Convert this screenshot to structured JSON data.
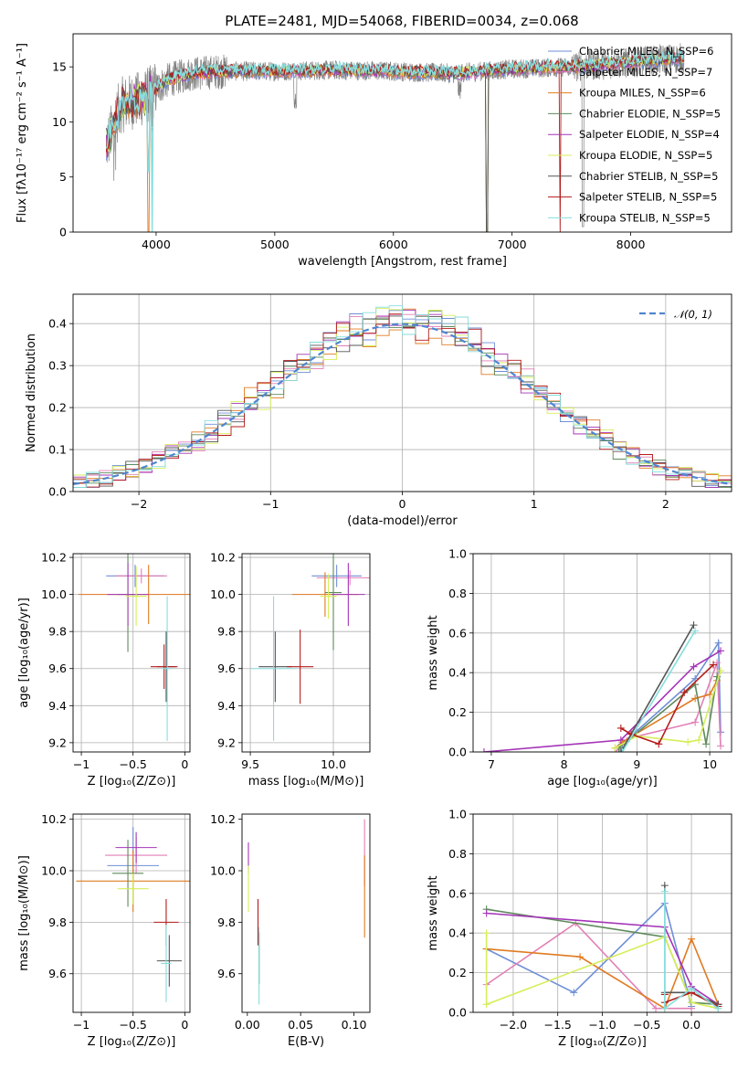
{
  "colors": {
    "chabrier_miles": "#6f8fd6",
    "salpeter_miles": "#e27fb6",
    "kroupa_miles": "#e07b22",
    "chabrier_elodie": "#5e8a5a",
    "salpeter_elodie": "#a534b8",
    "kroupa_elodie": "#d6ee5a",
    "chabrier_stelib": "#555555",
    "salpeter_stelib": "#b51c1c",
    "kroupa_stelib": "#86dede",
    "data": "#808080",
    "gauss": "#4f86d0"
  },
  "chart_data": [
    {
      "id": "spectrum",
      "type": "line",
      "title": "PLATE=2481, MJD=54068, FIBERID=0034, z=0.068",
      "xlabel": "wavelength [Angstrom, rest frame]",
      "ylabel": "Flux [fλ10⁻¹⁷ erg cm⁻² s⁻¹ A⁻¹]",
      "xlim": [
        3300,
        8850
      ],
      "ylim": [
        0,
        18
      ],
      "xticks": [
        4000,
        5000,
        6000,
        7000,
        8000
      ],
      "yticks": [
        0,
        5,
        10,
        15
      ],
      "grid": false,
      "legend_position": "right",
      "legend": [
        "Chabrier MILES, N_SSP=6",
        "Salpeter MILES, N_SSP=7",
        "Kroupa MILES, N_SSP=6",
        "Chabrier ELODIE, N_SSP=5",
        "Salpeter ELODIE, N_SSP=4",
        "Kroupa ELODIE, N_SSP=5",
        "Chabrier STELIB, N_SSP=5",
        "Salpeter STELIB, N_SSP=5",
        "Kroupa STELIB, N_SSP=5"
      ],
      "continuum": [
        [
          3580,
          7.8
        ],
        [
          3700,
          11.5
        ],
        [
          3900,
          12.2
        ],
        [
          4100,
          13.8
        ],
        [
          4300,
          14.4
        ],
        [
          4600,
          14.6
        ],
        [
          5000,
          14.6
        ],
        [
          5500,
          14.7
        ],
        [
          6000,
          14.6
        ],
        [
          6500,
          14.4
        ],
        [
          7000,
          14.8
        ],
        [
          7500,
          15.0
        ],
        [
          8000,
          15.4
        ],
        [
          8300,
          15.7
        ],
        [
          8450,
          15.8
        ]
      ]
    },
    {
      "id": "residuals",
      "type": "histogram",
      "xlabel": "(data-model)/error",
      "ylabel": "Normed distribution",
      "xlim": [
        -2.5,
        2.5
      ],
      "ylim": [
        0,
        0.47
      ],
      "xticks": [
        -2,
        -1,
        0,
        1,
        2
      ],
      "yticks": [
        0.0,
        0.1,
        0.2,
        0.3,
        0.4
      ],
      "grid": true,
      "legend_position": "top-right",
      "legend": [
        "𝒩(0, 1)"
      ],
      "bin_width": 0.1
    },
    {
      "id": "age_vs_Z",
      "type": "scatter",
      "xlabel": "Z [log₁₀(Z/Z⊙)]",
      "ylabel": "age  [log₁₀(age/yr)]",
      "xlim": [
        -1.08,
        0.05
      ],
      "ylim": [
        9.15,
        10.22
      ],
      "xticks": [
        -1.0,
        -0.5,
        0.0
      ],
      "yticks": [
        9.2,
        9.4,
        9.6,
        9.8,
        10.0,
        10.2
      ],
      "grid": true,
      "points": [
        {
          "series": "chabrier_miles",
          "x": -0.48,
          "y": 10.1,
          "xerr": 0.28,
          "yerr": 0.06
        },
        {
          "series": "salpeter_miles",
          "x": -0.42,
          "y": 10.1,
          "xerr": 0.25,
          "yerr": 0.04
        },
        {
          "series": "kroupa_miles",
          "x": -0.35,
          "y": 10.0,
          "xerr": 0.68,
          "yerr": 0.16
        },
        {
          "series": "chabrier_elodie",
          "x": -0.55,
          "y": 10.0,
          "xerr": 0.1,
          "yerr": 0.31
        },
        {
          "series": "salpeter_elodie",
          "x": -0.55,
          "y": 10.0,
          "xerr": 0.2,
          "yerr": 0.17
        },
        {
          "series": "kroupa_elodie",
          "x": -0.47,
          "y": 9.99,
          "xerr": 0.1,
          "yerr": 0.16
        },
        {
          "series": "chabrier_stelib",
          "x": -0.18,
          "y": 9.61,
          "xerr": 0.09,
          "yerr": 0.19
        },
        {
          "series": "salpeter_stelib",
          "x": -0.2,
          "y": 9.61,
          "xerr": 0.13,
          "yerr": 0.12
        },
        {
          "series": "kroupa_stelib",
          "x": -0.17,
          "y": 9.6,
          "xerr": 0.05,
          "yerr": 0.39
        }
      ]
    },
    {
      "id": "age_vs_mass",
      "type": "scatter",
      "xlabel": "mass [log₁₀(M/M⊙)]",
      "ylabel": "",
      "xlim": [
        9.45,
        10.22
      ],
      "ylim": [
        9.15,
        10.22
      ],
      "xticks": [
        9.5,
        10.0
      ],
      "yticks": [
        9.2,
        9.4,
        9.6,
        9.8,
        10.0,
        10.2
      ],
      "grid": true,
      "points": [
        {
          "series": "chabrier_miles",
          "x": 10.02,
          "y": 10.1,
          "xerr": 0.15,
          "yerr": 0.06
        },
        {
          "series": "salpeter_miles",
          "x": 10.1,
          "y": 10.09,
          "xerr": 0.2,
          "yerr": 0.04
        },
        {
          "series": "kroupa_miles",
          "x": 9.95,
          "y": 10.0,
          "xerr": 0.2,
          "yerr": 0.12
        },
        {
          "series": "chabrier_elodie",
          "x": 10.0,
          "y": 10.01,
          "xerr": 0.05,
          "yerr": 0.31
        },
        {
          "series": "salpeter_elodie",
          "x": 10.09,
          "y": 10.0,
          "xerr": 0.1,
          "yerr": 0.17
        },
        {
          "series": "kroupa_elodie",
          "x": 9.97,
          "y": 9.99,
          "xerr": 0.05,
          "yerr": 0.12
        },
        {
          "series": "chabrier_stelib",
          "x": 9.65,
          "y": 9.61,
          "xerr": 0.1,
          "yerr": 0.19
        },
        {
          "series": "salpeter_stelib",
          "x": 9.8,
          "y": 9.61,
          "xerr": 0.08,
          "yerr": 0.2
        },
        {
          "series": "kroupa_stelib",
          "x": 9.64,
          "y": 9.6,
          "xerr": 0.13,
          "yerr": 0.39
        }
      ]
    },
    {
      "id": "weight_vs_age",
      "type": "line",
      "xlabel": "age  [log₁₀(age/yr)]",
      "ylabel": "mass weight",
      "xlim": [
        6.75,
        10.3
      ],
      "ylim": [
        0,
        1.0
      ],
      "xticks": [
        7,
        8,
        9,
        10
      ],
      "yticks": [
        0.0,
        0.2,
        0.4,
        0.6,
        0.8,
        1.0
      ],
      "grid": true,
      "series": [
        {
          "series": "chabrier_miles",
          "x": [
            8.76,
            8.8,
            9.8,
            10.12,
            10.15
          ],
          "y": [
            0.02,
            0.04,
            0.37,
            0.55,
            0.1
          ]
        },
        {
          "series": "salpeter_miles",
          "x": [
            8.7,
            8.9,
            9.8,
            10.1,
            10.15
          ],
          "y": [
            0.0,
            0.07,
            0.15,
            0.45,
            0.03
          ]
        },
        {
          "series": "kroupa_miles",
          "x": [
            8.7,
            8.8,
            9.8,
            10.0,
            10.1
          ],
          "y": [
            0.02,
            0.05,
            0.27,
            0.29,
            0.36
          ]
        },
        {
          "series": "chabrier_elodie",
          "x": [
            8.75,
            9.8,
            9.95,
            10.1
          ],
          "y": [
            0.02,
            0.34,
            0.04,
            0.38
          ]
        },
        {
          "series": "salpeter_elodie",
          "x": [
            6.9,
            8.78,
            9.78,
            10.15
          ],
          "y": [
            0.0,
            0.06,
            0.43,
            0.51
          ]
        },
        {
          "series": "kroupa_elodie",
          "x": [
            8.7,
            9.0,
            9.7,
            9.85,
            10.15
          ],
          "y": [
            0.02,
            0.08,
            0.05,
            0.06,
            0.41
          ]
        },
        {
          "series": "chabrier_stelib",
          "x": [
            8.78,
            9.78
          ],
          "y": [
            0.0,
            0.64
          ]
        },
        {
          "series": "salpeter_stelib",
          "x": [
            8.78,
            8.92,
            9.3,
            9.65,
            10.05
          ],
          "y": [
            0.12,
            0.09,
            0.04,
            0.3,
            0.44
          ]
        },
        {
          "series": "kroupa_stelib",
          "x": [
            8.8,
            9.8
          ],
          "y": [
            0.0,
            0.61
          ]
        }
      ]
    },
    {
      "id": "mass_vs_Z",
      "type": "scatter",
      "xlabel": "Z [log₁₀(Z/Z⊙)]",
      "ylabel": "mass [log₁₀(M/M⊙)]",
      "xlim": [
        -1.08,
        0.05
      ],
      "ylim": [
        9.45,
        10.22
      ],
      "xticks": [
        -1.0,
        -0.5,
        0.0
      ],
      "yticks": [
        9.6,
        9.8,
        10.0,
        10.2
      ],
      "grid": true,
      "points": [
        {
          "series": "chabrier_miles",
          "x": -0.5,
          "y": 10.02,
          "xerr": 0.25,
          "yerr": 0.15
        },
        {
          "series": "salpeter_miles",
          "x": -0.47,
          "y": 10.06,
          "xerr": 0.3,
          "yerr": 0.07
        },
        {
          "series": "kroupa_miles",
          "x": -0.5,
          "y": 9.96,
          "xerr": 0.55,
          "yerr": 0.12
        },
        {
          "series": "chabrier_elodie",
          "x": -0.55,
          "y": 9.99,
          "xerr": 0.15,
          "yerr": 0.13
        },
        {
          "series": "salpeter_elodie",
          "x": -0.47,
          "y": 10.09,
          "xerr": 0.2,
          "yerr": 0.06
        },
        {
          "series": "kroupa_elodie",
          "x": -0.5,
          "y": 9.93,
          "xerr": 0.15,
          "yerr": 0.06
        },
        {
          "series": "chabrier_stelib",
          "x": -0.15,
          "y": 9.65,
          "xerr": 0.12,
          "yerr": 0.1
        },
        {
          "series": "salpeter_stelib",
          "x": -0.18,
          "y": 9.8,
          "xerr": 0.12,
          "yerr": 0.09
        },
        {
          "series": "kroupa_stelib",
          "x": -0.18,
          "y": 9.64,
          "xerr": 0.05,
          "yerr": 0.15
        }
      ]
    },
    {
      "id": "mass_vs_ebv",
      "type": "scatter",
      "xlabel": "E(B-V)",
      "ylabel": "",
      "xlim": [
        -0.005,
        0.115
      ],
      "ylim": [
        9.45,
        10.22
      ],
      "xticks": [
        0.0,
        0.05,
        0.1
      ],
      "yticks": [
        9.6,
        9.8,
        10.0,
        10.2
      ],
      "grid": false,
      "points": [
        {
          "series": "salpeter_elodie",
          "x": 0.001,
          "y": 10.05,
          "xerr": 0,
          "yerr": 0.06
        },
        {
          "series": "kroupa_elodie",
          "x": 0.001,
          "y": 9.93,
          "xerr": 0,
          "yerr": 0.09
        },
        {
          "series": "salpeter_stelib",
          "x": 0.01,
          "y": 9.8,
          "xerr": 0,
          "yerr": 0.09
        },
        {
          "series": "chabrier_stelib",
          "x": 0.011,
          "y": 9.66,
          "xerr": 0,
          "yerr": 0.1
        },
        {
          "series": "kroupa_stelib",
          "x": 0.011,
          "y": 9.63,
          "xerr": 0,
          "yerr": 0.15
        },
        {
          "series": "salpeter_miles",
          "x": 0.11,
          "y": 10.07,
          "xerr": 0,
          "yerr": 0.13
        },
        {
          "series": "kroupa_miles",
          "x": 0.11,
          "y": 9.9,
          "xerr": 0,
          "yerr": 0.16
        }
      ]
    },
    {
      "id": "weight_vs_Z",
      "type": "line",
      "xlabel": "Z [log₁₀(Z/Z⊙)]",
      "ylabel": "mass weight",
      "xlim": [
        -2.45,
        0.45
      ],
      "ylim": [
        0,
        1.0
      ],
      "xticks": [
        -2.0,
        -1.5,
        -1.0,
        -0.5,
        0.0
      ],
      "yticks": [
        0.0,
        0.2,
        0.4,
        0.6,
        0.8,
        1.0
      ],
      "grid": true,
      "series": [
        {
          "series": "chabrier_miles",
          "x": [
            -2.3,
            -1.32,
            -0.3,
            0.0
          ],
          "y": [
            0.32,
            0.1,
            0.55,
            0.03
          ]
        },
        {
          "series": "salpeter_miles",
          "x": [
            -2.3,
            -1.3,
            -0.4,
            0.0
          ],
          "y": [
            0.14,
            0.45,
            0.02,
            0.02
          ]
        },
        {
          "series": "kroupa_miles",
          "x": [
            -2.3,
            -1.25,
            -0.3,
            0.0,
            0.3
          ],
          "y": [
            0.32,
            0.28,
            0.02,
            0.37,
            0.04
          ]
        },
        {
          "series": "chabrier_elodie",
          "x": [
            -2.3,
            -0.3,
            0.0,
            0.3
          ],
          "y": [
            0.52,
            0.38,
            0.05,
            0.04
          ]
        },
        {
          "series": "salpeter_elodie",
          "x": [
            -2.3,
            -0.3,
            0.0,
            0.3
          ],
          "y": [
            0.5,
            0.43,
            0.13,
            0.04
          ]
        },
        {
          "series": "kroupa_elodie",
          "x": [
            -2.3,
            -2.3,
            -0.3,
            0.0,
            0.3
          ],
          "y": [
            0.4,
            0.04,
            0.38,
            0.05,
            0.02
          ]
        },
        {
          "series": "chabrier_stelib",
          "x": [
            -0.3,
            -0.3,
            0.0,
            0.3
          ],
          "y": [
            0.64,
            0.1,
            0.1,
            0.04
          ]
        },
        {
          "series": "salpeter_stelib",
          "x": [
            -0.3,
            -0.3,
            0.0,
            0.3
          ],
          "y": [
            0.09,
            0.05,
            0.1,
            0.03
          ]
        },
        {
          "series": "kroupa_stelib",
          "x": [
            -0.3,
            -0.3,
            0.0,
            0.3
          ],
          "y": [
            0.61,
            0.02,
            0.12,
            0.02
          ]
        }
      ]
    }
  ]
}
